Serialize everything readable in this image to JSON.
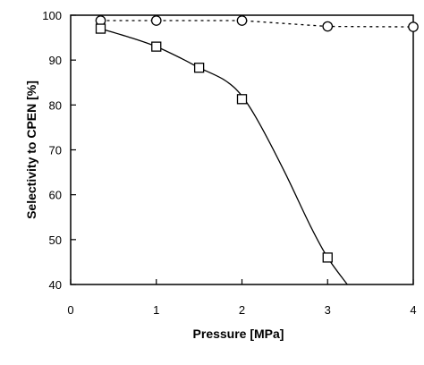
{
  "chart_data": {
    "type": "line",
    "xlabel": "Pressure [MPa]",
    "ylabel": "Selectivity to CPEN [%]",
    "xlim": [
      0,
      4
    ],
    "ylim": [
      40,
      100
    ],
    "xticks": [
      "0",
      "1",
      "2",
      "3",
      "4"
    ],
    "yticks": [
      "40",
      "50",
      "60",
      "70",
      "80",
      "90",
      "100"
    ],
    "grid": false,
    "legend": "none",
    "series": [
      {
        "marker": "circle",
        "line_style": "dotted",
        "color": "#000000",
        "x": [
          0.35,
          1.0,
          2.0,
          3.0,
          4.0
        ],
        "y": [
          98.8,
          98.8,
          98.8,
          97.5,
          97.4
        ]
      },
      {
        "marker": "square",
        "line_style": "solid",
        "color": "#000000",
        "x": [
          0.35,
          1.0,
          1.5,
          2.0,
          3.0
        ],
        "y": [
          97.0,
          93.0,
          88.3,
          81.3,
          46.0
        ],
        "fit_curve": {
          "x": [
            0.35,
            0.7,
            1.0,
            1.3,
            1.5,
            1.8,
            2.0,
            2.2,
            2.5,
            2.8,
            3.0,
            3.23
          ],
          "y": [
            97.0,
            95.0,
            93.0,
            90.3,
            88.3,
            85.5,
            82.0,
            76.0,
            65.0,
            53.0,
            46.0,
            40.0
          ]
        }
      }
    ]
  }
}
